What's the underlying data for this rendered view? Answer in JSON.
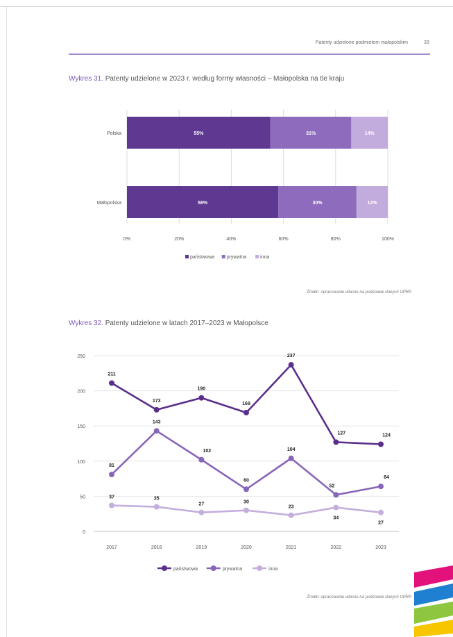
{
  "page": {
    "header_title": "Patenty udzielone podmiotom małopolskim",
    "page_number": "33"
  },
  "charts": [
    {
      "caption_label": "Wykres 31.",
      "caption_text": "Patenty udzielone w 2023 r. według formy własności – Małopolska na tle kraju",
      "source": "Źródło: opracowanie własne na podstawie danych UPRP."
    },
    {
      "caption_label": "Wykres 32.",
      "caption_text": "Patenty udzielone w latach 2017–2023 w Małopolsce",
      "source": "Źródło: opracowanie własne na podstawie danych UPRP."
    }
  ],
  "chart_data": [
    {
      "type": "bar",
      "orientation": "horizontal",
      "stacked": true,
      "categories": [
        "Polska",
        "Małopolska"
      ],
      "series": [
        {
          "name": "państwowa",
          "values": [
            55,
            58
          ],
          "labels": [
            "55%",
            "58%"
          ],
          "color": "#5e3891"
        },
        {
          "name": "prywatna",
          "values": [
            31,
            30
          ],
          "labels": [
            "31%",
            "30%"
          ],
          "color": "#8e6bbd"
        },
        {
          "name": "inna",
          "values": [
            14,
            12
          ],
          "labels": [
            "14%",
            "12%"
          ],
          "color": "#c2abdd"
        }
      ],
      "xlim": [
        0,
        100
      ],
      "x_ticks": [
        "0%",
        "20%",
        "40%",
        "60%",
        "80%",
        "100%"
      ],
      "grid": true,
      "legend": "bottom"
    },
    {
      "type": "line",
      "x": [
        "2017",
        "2018",
        "2019",
        "2020",
        "2021",
        "2022",
        "2023"
      ],
      "series": [
        {
          "name": "państwowa",
          "values": [
            211,
            173,
            190,
            169,
            237,
            127,
            124
          ],
          "color": "#5a2f8c"
        },
        {
          "name": "prywatna",
          "values": [
            81,
            143,
            102,
            60,
            104,
            52,
            64
          ],
          "color": "#8766b9"
        },
        {
          "name": "inna",
          "values": [
            37,
            35,
            27,
            30,
            23,
            34,
            27
          ],
          "color": "#c3aedc"
        }
      ],
      "ylim": [
        0,
        250
      ],
      "y_ticks": [
        "0",
        "50",
        "100",
        "150",
        "200",
        "250"
      ],
      "grid": true,
      "legend": "bottom"
    }
  ]
}
